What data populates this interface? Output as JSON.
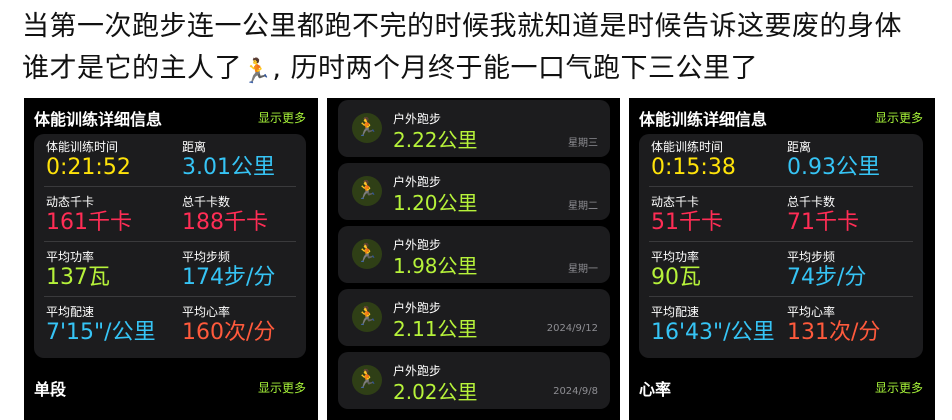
{
  "post": {
    "line1": "当第一次跑步连一公里都跑不完的时候我就知道是时候告诉这要废的身体",
    "line2_a": "谁才是它的主人了",
    "line2_emoji": "🏃",
    "line2_b": ", 历时两个月终于能一口气跑下三公里了"
  },
  "shot1": {
    "title": "体能训练详细信息",
    "more": "显示更多",
    "stats": {
      "time_label": "体能训练时间",
      "time_value": "0:21:52",
      "dist_label": "距离",
      "dist_value": "3.01公里",
      "active_label": "动态千卡",
      "active_value": "161千卡",
      "total_label": "总千卡数",
      "total_value": "188千卡",
      "power_label": "平均功率",
      "power_value": "137瓦",
      "cadence_label": "平均步频",
      "cadence_value": "174步/分",
      "pace_label": "平均配速",
      "pace_value": "7'15\"/公里",
      "hr_label": "平均心率",
      "hr_value": "160次/分"
    },
    "next_title": "单段",
    "next_more": "显示更多"
  },
  "shot2": {
    "runs": [
      {
        "type": "户外跑步",
        "distance": "2.22公里",
        "date": "星期三"
      },
      {
        "type": "户外跑步",
        "distance": "1.20公里",
        "date": "星期二"
      },
      {
        "type": "户外跑步",
        "distance": "1.98公里",
        "date": "星期一"
      },
      {
        "type": "户外跑步",
        "distance": "2.11公里",
        "date": "2024/9/12"
      },
      {
        "type": "户外跑步",
        "distance": "2.02公里",
        "date": "2024/9/8"
      }
    ]
  },
  "shot3": {
    "title": "体能训练详细信息",
    "more": "显示更多",
    "stats": {
      "time_label": "体能训练时间",
      "time_value": "0:15:38",
      "dist_label": "距离",
      "dist_value": "0.93公里",
      "active_label": "动态千卡",
      "active_value": "51千卡",
      "total_label": "总千卡数",
      "total_value": "71千卡",
      "power_label": "平均功率",
      "power_value": "90瓦",
      "cadence_label": "平均步频",
      "cadence_value": "74步/分",
      "pace_label": "平均配速",
      "pace_value": "16'43\"/公里",
      "hr_label": "平均心率",
      "hr_value": "131次/分"
    },
    "next_title": "心率",
    "next_more": "显示更多"
  },
  "colors": {
    "accent_green": "#b6f23a",
    "time_yellow": "#ffe30a",
    "distance_blue": "#36c4f5",
    "calorie_red": "#ff2d55",
    "heart_orange": "#ff5a3c"
  }
}
